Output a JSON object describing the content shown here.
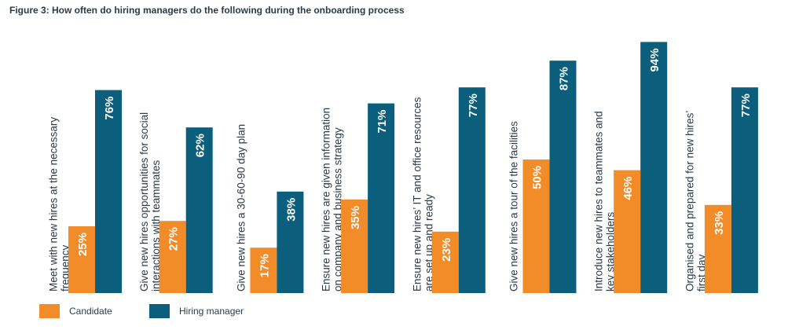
{
  "chart_data": {
    "type": "bar",
    "title": "Figure 3: How often do hiring managers do the following during the onboarding process",
    "categories": [
      [
        "Meet with new hires at the necessary",
        "frequency"
      ],
      [
        "Give new hires opportunities for social",
        "interactions with teammates"
      ],
      [
        "Give new hires a 30-60-90 day plan"
      ],
      [
        "Ensure new hires are given information",
        "on company and business strategy"
      ],
      [
        "Ensure new hires’ IT and office resources",
        "are set up and ready"
      ],
      [
        "Give new hires a tour of the facilities"
      ],
      [
        "Introduce new hires to teammates and",
        "key stakeholders"
      ],
      [
        "Organised and prepared for new hires’",
        "first day"
      ]
    ],
    "series": [
      {
        "name": "Candidate",
        "color": "#f28c28",
        "values": [
          25,
          27,
          17,
          35,
          23,
          50,
          46,
          33
        ],
        "labels": [
          "25%",
          "27%",
          "17%",
          "35%",
          "23%",
          "50%",
          "46%",
          "33%"
        ]
      },
      {
        "name": "Hiring manager",
        "color": "#0b5f7c",
        "values": [
          76,
          62,
          38,
          71,
          77,
          87,
          94,
          77
        ],
        "labels": [
          "76%",
          "62%",
          "38%",
          "71%",
          "77%",
          "87%",
          "94%",
          "77%"
        ]
      }
    ],
    "ylim": [
      0,
      100
    ],
    "grid": false,
    "legend_position": "bottom-left"
  }
}
